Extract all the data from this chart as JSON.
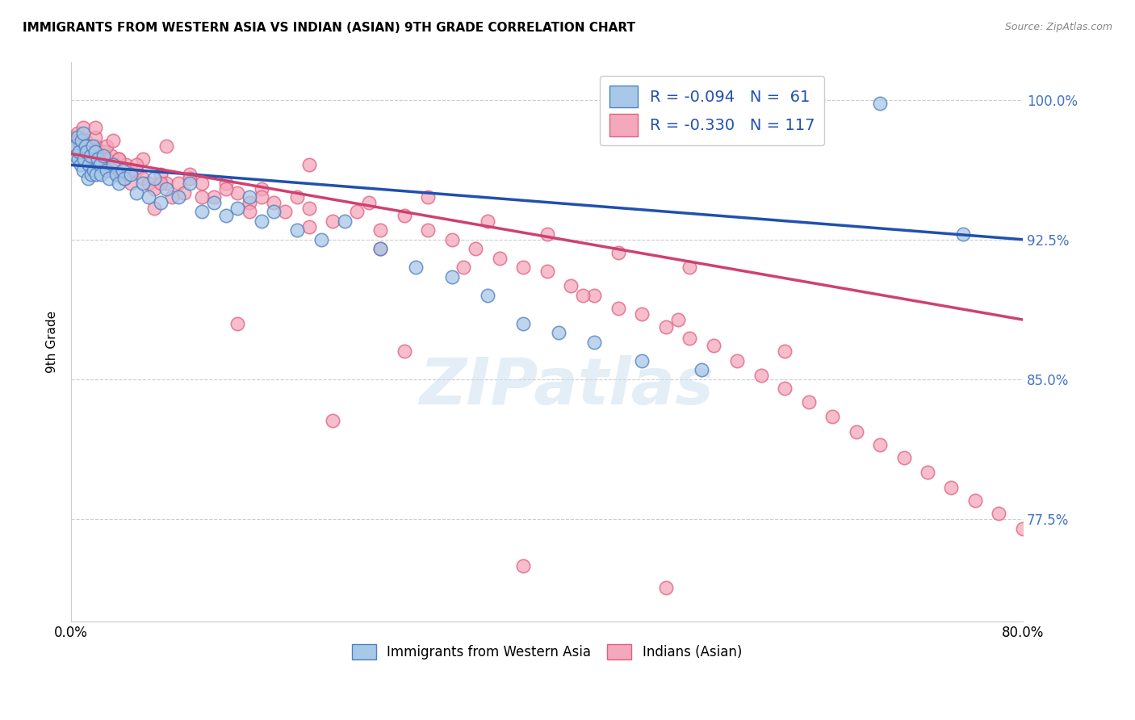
{
  "title": "IMMIGRANTS FROM WESTERN ASIA VS INDIAN (ASIAN) 9TH GRADE CORRELATION CHART",
  "source": "Source: ZipAtlas.com",
  "ylabel": "9th Grade",
  "xlim": [
    0.0,
    0.8
  ],
  "ylim": [
    0.72,
    1.02
  ],
  "ytick_labels": [
    "77.5%",
    "85.0%",
    "92.5%",
    "100.0%"
  ],
  "ytick_values": [
    0.775,
    0.85,
    0.925,
    1.0
  ],
  "xtick_positions": [
    0.0,
    0.2,
    0.4,
    0.6,
    0.8
  ],
  "xticklabels": [
    "0.0%",
    "",
    "",
    "",
    "80.0%"
  ],
  "blue_R": -0.094,
  "blue_N": 61,
  "pink_R": -0.33,
  "pink_N": 117,
  "blue_color": "#a8c8e8",
  "pink_color": "#f4a8bc",
  "blue_edge_color": "#5080c0",
  "pink_edge_color": "#e06080",
  "blue_line_color": "#2050b0",
  "pink_line_color": "#d04070",
  "background_color": "#ffffff",
  "legend_label_blue": "Immigrants from Western Asia",
  "legend_label_pink": "Indians (Asian)",
  "blue_line_x0": 0.0,
  "blue_line_y0": 0.965,
  "blue_line_x1": 0.8,
  "blue_line_y1": 0.925,
  "pink_line_x0": 0.0,
  "pink_line_y0": 0.971,
  "pink_line_x1": 0.8,
  "pink_line_y1": 0.882,
  "blue_scatter_x": [
    0.003,
    0.004,
    0.005,
    0.006,
    0.007,
    0.008,
    0.009,
    0.01,
    0.01,
    0.011,
    0.012,
    0.013,
    0.014,
    0.015,
    0.016,
    0.017,
    0.018,
    0.019,
    0.02,
    0.021,
    0.022,
    0.024,
    0.025,
    0.027,
    0.03,
    0.032,
    0.035,
    0.038,
    0.04,
    0.043,
    0.045,
    0.05,
    0.055,
    0.06,
    0.065,
    0.07,
    0.075,
    0.08,
    0.09,
    0.1,
    0.11,
    0.12,
    0.13,
    0.14,
    0.15,
    0.16,
    0.17,
    0.19,
    0.21,
    0.23,
    0.26,
    0.29,
    0.32,
    0.35,
    0.38,
    0.41,
    0.44,
    0.48,
    0.53,
    0.68,
    0.75
  ],
  "blue_scatter_y": [
    0.975,
    0.97,
    0.98,
    0.968,
    0.972,
    0.965,
    0.978,
    0.962,
    0.982,
    0.968,
    0.975,
    0.972,
    0.958,
    0.965,
    0.97,
    0.96,
    0.975,
    0.962,
    0.972,
    0.96,
    0.968,
    0.965,
    0.96,
    0.97,
    0.962,
    0.958,
    0.965,
    0.96,
    0.955,
    0.962,
    0.958,
    0.96,
    0.95,
    0.955,
    0.948,
    0.958,
    0.945,
    0.952,
    0.948,
    0.955,
    0.94,
    0.945,
    0.938,
    0.942,
    0.948,
    0.935,
    0.94,
    0.93,
    0.925,
    0.935,
    0.92,
    0.91,
    0.905,
    0.895,
    0.88,
    0.875,
    0.87,
    0.86,
    0.855,
    0.998,
    0.928
  ],
  "pink_scatter_x": [
    0.003,
    0.004,
    0.005,
    0.006,
    0.007,
    0.008,
    0.009,
    0.01,
    0.011,
    0.012,
    0.013,
    0.014,
    0.015,
    0.016,
    0.017,
    0.018,
    0.019,
    0.02,
    0.021,
    0.022,
    0.023,
    0.024,
    0.025,
    0.027,
    0.028,
    0.03,
    0.032,
    0.034,
    0.036,
    0.038,
    0.04,
    0.042,
    0.044,
    0.046,
    0.048,
    0.05,
    0.055,
    0.06,
    0.065,
    0.07,
    0.075,
    0.08,
    0.085,
    0.09,
    0.095,
    0.1,
    0.11,
    0.12,
    0.13,
    0.14,
    0.15,
    0.16,
    0.17,
    0.18,
    0.19,
    0.2,
    0.22,
    0.24,
    0.26,
    0.28,
    0.3,
    0.32,
    0.34,
    0.36,
    0.38,
    0.4,
    0.42,
    0.44,
    0.46,
    0.48,
    0.5,
    0.52,
    0.54,
    0.56,
    0.58,
    0.6,
    0.62,
    0.64,
    0.66,
    0.68,
    0.7,
    0.72,
    0.74,
    0.76,
    0.78,
    0.8,
    0.01,
    0.02,
    0.03,
    0.04,
    0.05,
    0.06,
    0.08,
    0.1,
    0.13,
    0.16,
    0.2,
    0.25,
    0.3,
    0.35,
    0.4,
    0.46,
    0.52,
    0.02,
    0.035,
    0.055,
    0.075,
    0.11,
    0.15,
    0.2,
    0.26,
    0.33,
    0.43,
    0.51,
    0.6,
    0.5,
    0.38,
    0.22,
    0.14,
    0.07,
    0.045,
    0.28
  ],
  "pink_scatter_y": [
    0.98,
    0.975,
    0.982,
    0.978,
    0.972,
    0.976,
    0.968,
    0.974,
    0.97,
    0.978,
    0.972,
    0.965,
    0.97,
    0.975,
    0.968,
    0.972,
    0.965,
    0.97,
    0.975,
    0.968,
    0.972,
    0.965,
    0.97,
    0.965,
    0.972,
    0.968,
    0.962,
    0.97,
    0.965,
    0.96,
    0.968,
    0.962,
    0.958,
    0.965,
    0.96,
    0.955,
    0.962,
    0.958,
    0.955,
    0.952,
    0.96,
    0.955,
    0.948,
    0.955,
    0.95,
    0.96,
    0.955,
    0.948,
    0.955,
    0.95,
    0.945,
    0.952,
    0.945,
    0.94,
    0.948,
    0.942,
    0.935,
    0.94,
    0.93,
    0.938,
    0.93,
    0.925,
    0.92,
    0.915,
    0.91,
    0.908,
    0.9,
    0.895,
    0.888,
    0.885,
    0.878,
    0.872,
    0.868,
    0.86,
    0.852,
    0.845,
    0.838,
    0.83,
    0.822,
    0.815,
    0.808,
    0.8,
    0.792,
    0.785,
    0.778,
    0.77,
    0.985,
    0.98,
    0.975,
    0.968,
    0.962,
    0.968,
    0.975,
    0.958,
    0.952,
    0.948,
    0.965,
    0.945,
    0.948,
    0.935,
    0.928,
    0.918,
    0.91,
    0.985,
    0.978,
    0.965,
    0.955,
    0.948,
    0.94,
    0.932,
    0.92,
    0.91,
    0.895,
    0.882,
    0.865,
    0.738,
    0.75,
    0.828,
    0.88,
    0.942,
    0.958,
    0.865
  ]
}
